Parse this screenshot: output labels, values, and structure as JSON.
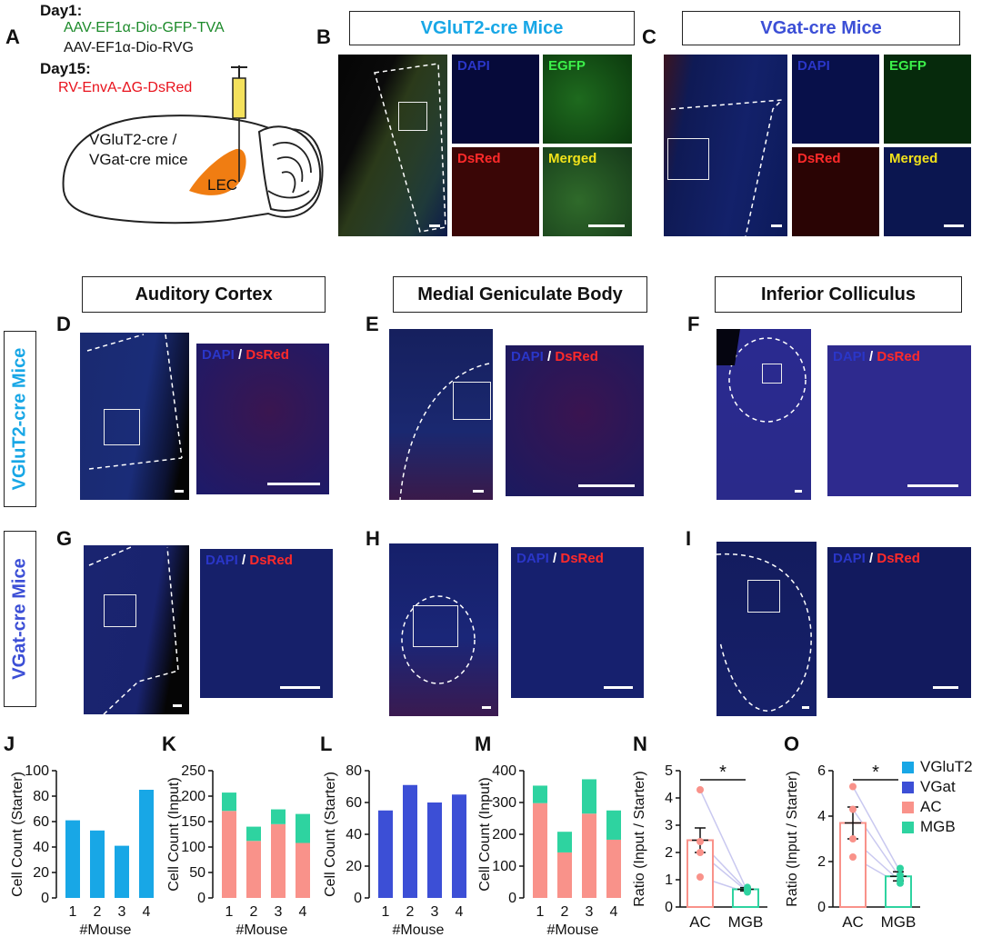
{
  "panel_letters": [
    "A",
    "B",
    "C",
    "D",
    "E",
    "F",
    "G",
    "H",
    "I",
    "J",
    "K",
    "L",
    "M",
    "N",
    "O"
  ],
  "protocol": {
    "day1": "Day1:",
    "virus1": "AAV-EF1α-Dio-GFP-TVA",
    "virus2": "AAV-EF1α-Dio-RVG",
    "day15": "Day15:",
    "virus3": "RV-EnvA-ΔG-DsRed",
    "mouse_line1": "VGluT2-cre /",
    "mouse_line2": "VGat-cre  mice",
    "region": "LEC"
  },
  "titles": {
    "vglut2": "VGluT2-cre Mice",
    "vgat": "VGat-cre Mice",
    "ac": "Auditory Cortex",
    "mgb": "Medial Geniculate Body",
    "ic": "Inferior Colliculus"
  },
  "channels": {
    "dapi": "DAPI",
    "egfp": "EGFP",
    "dsred": "DsRed",
    "merged": "Merged",
    "slash": " / "
  },
  "row_labels": {
    "vglut2": "VGluT2-cre Mice",
    "vgat": "VGat-cre Mice"
  },
  "colors": {
    "vglut2": "#18a7e6",
    "vgat": "#3c4fd6",
    "ac": "#f9928a",
    "mgb": "#2ed3a0",
    "dapi": "#2a36c8",
    "dsred": "#e8121c",
    "egfp": "#22c83a",
    "merged": "#f2e21a",
    "lec": "#f07d12"
  },
  "chart_data": [
    {
      "panel": "J",
      "type": "bar",
      "ylabel": "Cell Count (Starter)",
      "xlabel": "#Mouse",
      "categories": [
        "1",
        "2",
        "3",
        "4"
      ],
      "values": [
        61,
        53,
        41,
        85
      ],
      "ylim": [
        0,
        100
      ],
      "yticks": [
        "0",
        "20",
        "40",
        "60",
        "80",
        "100"
      ],
      "series_color": "vglut2"
    },
    {
      "panel": "K",
      "type": "bar",
      "ylabel": "Cell Count (Input)",
      "xlabel": "#Mouse",
      "categories": [
        "1",
        "2",
        "3",
        "4"
      ],
      "series": [
        {
          "name": "AC",
          "values": [
            171,
            112,
            145,
            108
          ]
        },
        {
          "name": "MGB",
          "values": [
            36,
            28,
            29,
            57
          ]
        }
      ],
      "ylim": [
        0,
        250
      ],
      "yticks": [
        "0",
        "50",
        "100",
        "150",
        "200",
        "250"
      ],
      "stacked": true
    },
    {
      "panel": "L",
      "type": "bar",
      "ylabel": "Cell Count (Starter)",
      "xlabel": "#Mouse",
      "categories": [
        "1",
        "2",
        "3",
        "4"
      ],
      "values": [
        55,
        71,
        60,
        65
      ],
      "ylim": [
        0,
        80
      ],
      "yticks": [
        "0",
        "20",
        "40",
        "60",
        "80"
      ],
      "series_color": "vgat"
    },
    {
      "panel": "M",
      "type": "bar",
      "ylabel": "Cell Count (Input)",
      "xlabel": "#Mouse",
      "categories": [
        "1",
        "2",
        "3",
        "4"
      ],
      "series": [
        {
          "name": "AC",
          "values": [
            298,
            143,
            265,
            183
          ]
        },
        {
          "name": "MGB",
          "values": [
            55,
            65,
            108,
            92
          ]
        }
      ],
      "ylim": [
        0,
        400
      ],
      "yticks": [
        "0",
        "100",
        "200",
        "300",
        "400"
      ],
      "stacked": true
    },
    {
      "panel": "N",
      "type": "bar",
      "ylabel": "Ratio (Input / Starter)",
      "categories": [
        "AC",
        "MGB"
      ],
      "means": [
        2.45,
        0.65
      ],
      "sem": [
        0.45,
        0.06
      ],
      "points": [
        [
          4.3,
          2.4,
          2.0,
          1.1
        ],
        [
          0.72,
          0.66,
          0.62,
          0.55
        ]
      ],
      "ylim": [
        0,
        5
      ],
      "yticks": [
        "0",
        "1",
        "2",
        "3",
        "4",
        "5"
      ],
      "significance": "*"
    },
    {
      "panel": "O",
      "type": "bar",
      "ylabel": "Ratio (Input / Starter)",
      "categories": [
        "AC",
        "MGB"
      ],
      "means": [
        3.7,
        1.35
      ],
      "sem": [
        0.7,
        0.2
      ],
      "points": [
        [
          5.3,
          4.3,
          3.0,
          2.2
        ],
        [
          1.7,
          1.4,
          1.2,
          1.05
        ]
      ],
      "ylim": [
        0,
        6
      ],
      "yticks": [
        "0",
        "2",
        "4",
        "6"
      ],
      "significance": "*"
    }
  ],
  "legend": [
    {
      "name": "VGluT2",
      "color": "vglut2"
    },
    {
      "name": "VGat",
      "color": "vgat"
    },
    {
      "name": "AC",
      "color": "ac"
    },
    {
      "name": "MGB",
      "color": "mgb"
    }
  ]
}
